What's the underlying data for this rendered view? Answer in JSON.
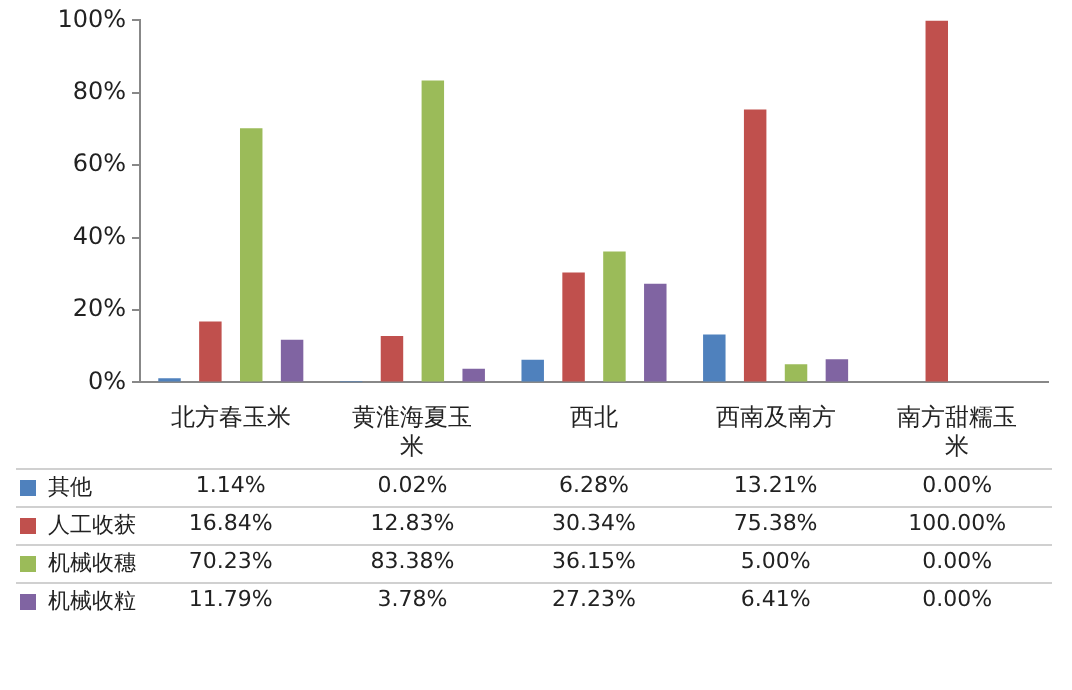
{
  "chart_data": {
    "type": "bar",
    "categories": [
      "北方春玉米",
      "黄淮海夏玉米",
      "西北",
      "西南及南方",
      "南方甜糯玉米"
    ],
    "series": [
      {
        "name": "其他",
        "color": "#4f81bd",
        "values": [
          1.14,
          0.02,
          6.28,
          13.21,
          0.0
        ],
        "value_labels": [
          "1.14%",
          "0.02%",
          "6.28%",
          "13.21%",
          "0.00%"
        ]
      },
      {
        "name": "人工收获",
        "color": "#c0504d",
        "values": [
          16.84,
          12.83,
          30.34,
          75.38,
          100.0
        ],
        "value_labels": [
          "16.84%",
          "12.83%",
          "30.34%",
          "75.38%",
          "100.00%"
        ]
      },
      {
        "name": "机械收穗",
        "color": "#9bbb59",
        "values": [
          70.23,
          83.38,
          36.15,
          5.0,
          0.0
        ],
        "value_labels": [
          "70.23%",
          "83.38%",
          "36.15%",
          "5.00%",
          "0.00%"
        ]
      },
      {
        "name": "机械收粒",
        "color": "#8064a2",
        "values": [
          11.79,
          3.78,
          27.23,
          6.41,
          0.0
        ],
        "value_labels": [
          "11.79%",
          "3.78%",
          "27.23%",
          "6.41%",
          "0.00%"
        ]
      }
    ],
    "ylim": [
      0,
      100
    ],
    "yticks": [
      {
        "value": 0,
        "label": "0%"
      },
      {
        "value": 20,
        "label": "20%"
      },
      {
        "value": 40,
        "label": "40%"
      },
      {
        "value": 60,
        "label": "60%"
      },
      {
        "value": 80,
        "label": "80%"
      },
      {
        "value": 100,
        "label": "100%"
      }
    ],
    "grid": false,
    "legend": "bottom"
  }
}
